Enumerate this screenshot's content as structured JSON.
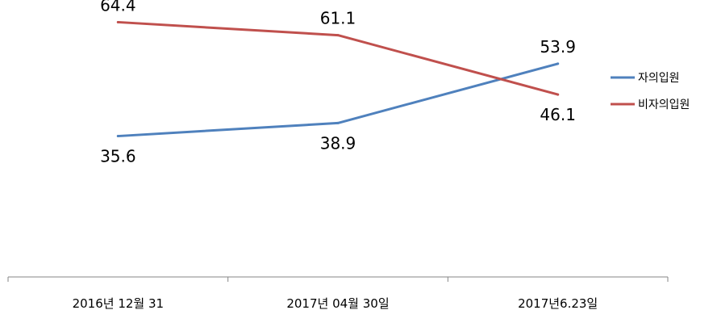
{
  "chart_data": {
    "type": "line",
    "title": "",
    "xlabel": "",
    "ylabel": "",
    "categories": [
      "2016년 12월 31",
      "2017년 04월 30일",
      "2017년6.23일"
    ],
    "series": [
      {
        "name": "자의입원",
        "color": "#4F81BD",
        "values": [
          35.6,
          38.9,
          53.9
        ],
        "labels": [
          "35.6",
          "38.9",
          "53.9"
        ]
      },
      {
        "name": "비자의입원",
        "color": "#C0504D",
        "values": [
          64.4,
          61.1,
          46.1
        ],
        "labels": [
          "64.4",
          "61.1",
          "46.1"
        ]
      }
    ],
    "ylim": [
      0,
      70
    ],
    "grid": false,
    "y_axis_visible": false,
    "legend_position": "right"
  }
}
